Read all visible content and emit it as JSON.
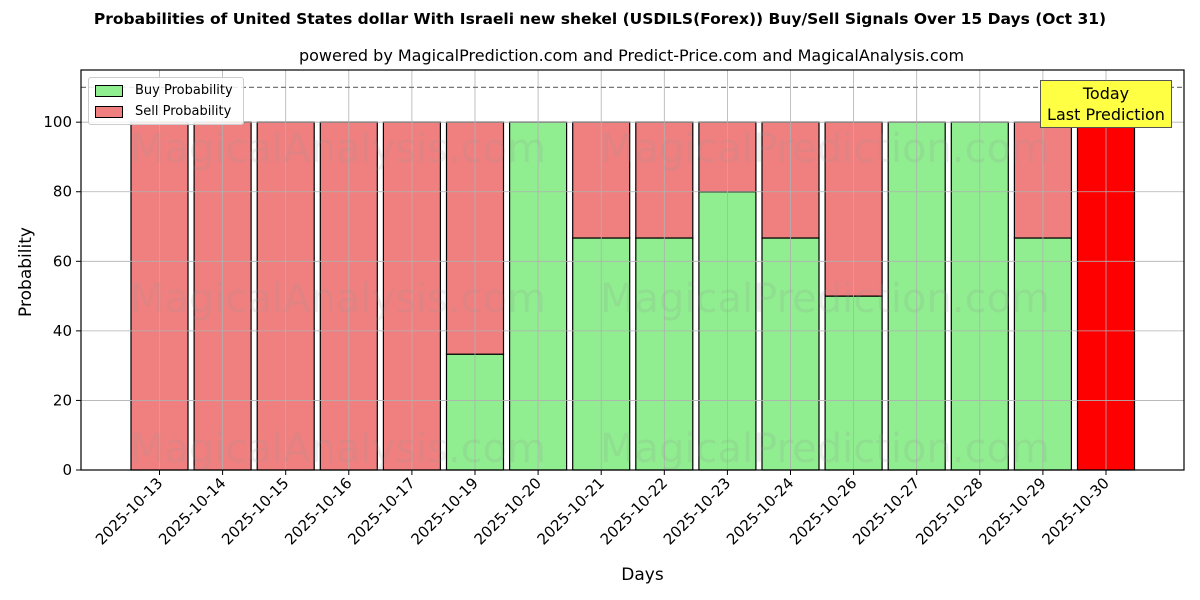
{
  "title": "Probabilities of United States dollar With Israeli new shekel (USDILS(Forex)) Buy/Sell Signals Over 15 Days (Oct 31)",
  "subtitle": "powered by MagicalPrediction.com and Predict-Price.com and MagicalAnalysis.com",
  "legend": {
    "buy_label": "Buy Probability",
    "sell_label": "Sell Probability"
  },
  "annotation": {
    "line1": "Today",
    "line2": "Last Prediction"
  },
  "colors": {
    "buy": "#90ee90",
    "sell": "#f08080",
    "today": "#ff0000",
    "annotation_bg": "#ffff44"
  },
  "watermarks": [
    "MagicalAnalysis.com",
    "MagicalPrediction.com"
  ],
  "chart_data": {
    "type": "bar",
    "stacked": true,
    "title": "Probabilities of United States dollar With Israeli new shekel (USDILS(Forex)) Buy/Sell Signals Over 15 Days (Oct 31)",
    "subtitle": "powered by MagicalPrediction.com and Predict-Price.com and MagicalAnalysis.com",
    "xlabel": "Days",
    "ylabel": "Probability",
    "ylim": [
      0,
      115
    ],
    "yticks": [
      0,
      20,
      40,
      60,
      80,
      100
    ],
    "grid": true,
    "legend_position": "upper left",
    "reference_line": {
      "y": 110,
      "style": "dashed"
    },
    "categories": [
      "2025-10-13",
      "2025-10-14",
      "2025-10-15",
      "2025-10-16",
      "2025-10-17",
      "2025-10-19",
      "2025-10-20",
      "2025-10-21",
      "2025-10-22",
      "2025-10-23",
      "2025-10-24",
      "2025-10-26",
      "2025-10-27",
      "2025-10-28",
      "2025-10-29",
      "2025-10-30"
    ],
    "series": [
      {
        "name": "Buy Probability",
        "values": [
          0,
          0,
          0,
          0,
          0,
          33.3,
          100,
          66.7,
          66.7,
          80,
          66.7,
          50,
          100,
          100,
          66.7,
          0
        ]
      },
      {
        "name": "Sell Probability",
        "values": [
          100,
          100,
          100,
          100,
          100,
          66.7,
          0,
          33.3,
          33.3,
          20,
          33.3,
          50,
          0,
          0,
          33.3,
          100
        ]
      }
    ],
    "highlight": {
      "category": "2025-10-30",
      "label": "Today Last Prediction",
      "color": "#ff0000"
    }
  }
}
